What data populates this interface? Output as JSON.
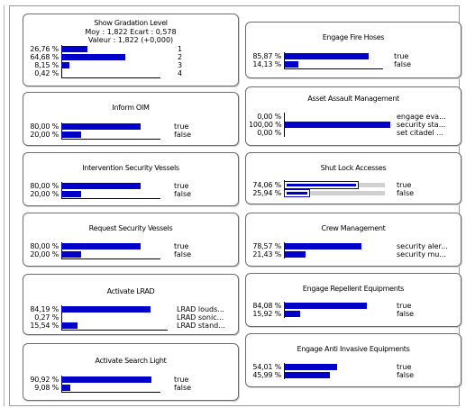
{
  "nodes": [
    {
      "title": "Show Gradation Level",
      "stats_line1": "Moy : 1,822  Ecart : 0,578",
      "stats_line2": "Valeur : 1,822 (+0,000)",
      "rows": [
        {
          "pct": "26,76 %",
          "value": 26.76,
          "state": "1"
        },
        {
          "pct": "64,68 %",
          "value": 64.68,
          "state": "2"
        },
        {
          "pct": "8,15 %",
          "value": 8.15,
          "state": "3"
        },
        {
          "pct": "0,42 %",
          "value": 0.42,
          "state": "4"
        }
      ]
    },
    {
      "title": "Engage Fire Hoses",
      "rows": [
        {
          "pct": "85,87 %",
          "value": 85.87,
          "state": "true"
        },
        {
          "pct": "14,13 %",
          "value": 14.13,
          "state": "false"
        }
      ]
    },
    {
      "title": "Inform OIM",
      "rows": [
        {
          "pct": "80,00 %",
          "value": 80.0,
          "state": "true"
        },
        {
          "pct": "20,00 %",
          "value": 20.0,
          "state": "false"
        }
      ]
    },
    {
      "title": "Asset Assault Management",
      "rows": [
        {
          "pct": "0,00 %",
          "value": 0.0,
          "state": "engage eva..."
        },
        {
          "pct": "100,00 %",
          "value": 100.0,
          "state": "security sta..."
        },
        {
          "pct": "0,00 %",
          "value": 0.0,
          "state": "set citadel ..."
        }
      ]
    },
    {
      "title": "Intervention Security Vessels",
      "rows": [
        {
          "pct": "80,00 %",
          "value": 80.0,
          "state": "true"
        },
        {
          "pct": "20,00 %",
          "value": 20.0,
          "state": "false"
        }
      ]
    },
    {
      "title": "Shut Lock Accesses",
      "rows": [
        {
          "pct": "74,06 %",
          "value": 74.06,
          "state": "true"
        },
        {
          "pct": "25,94 %",
          "value": 25.94,
          "state": "false"
        }
      ]
    },
    {
      "title": "Request Security Vessels",
      "rows": [
        {
          "pct": "80,00 %",
          "value": 80.0,
          "state": "true"
        },
        {
          "pct": "20,00 %",
          "value": 20.0,
          "state": "false"
        }
      ]
    },
    {
      "title": "Crew Management",
      "rows": [
        {
          "pct": "78,57 %",
          "value": 78.57,
          "state": "security aler..."
        },
        {
          "pct": "21,43 %",
          "value": 21.43,
          "state": "security mu..."
        }
      ]
    },
    {
      "title": "Activate LRAD",
      "rows": [
        {
          "pct": "84,19 %",
          "value": 84.19,
          "state": "LRAD louds..."
        },
        {
          "pct": "0,27 %",
          "value": 0.27,
          "state": "LRAD sonic..."
        },
        {
          "pct": "15,54 %",
          "value": 15.54,
          "state": "LRAD stand..."
        }
      ]
    },
    {
      "title": "Engage Repellent Equipments",
      "rows": [
        {
          "pct": "84,08 %",
          "value": 84.08,
          "state": "true"
        },
        {
          "pct": "15,92 %",
          "value": 15.92,
          "state": "false"
        }
      ]
    },
    {
      "title": "Engage Anti Invasive Equipments",
      "rows": [
        {
          "pct": "54,01 %",
          "value": 54.01,
          "state": "true"
        },
        {
          "pct": "45,99 %",
          "value": 45.99,
          "state": "false"
        }
      ]
    },
    {
      "title": "Activate Search Light",
      "rows": [
        {
          "pct": "90,92 %",
          "value": 90.92,
          "state": "true"
        },
        {
          "pct": "9,08 %",
          "value": 9.08,
          "state": "false"
        }
      ]
    }
  ],
  "colors": {
    "bar": "#0000c8",
    "border": "#6d6d6d",
    "highlight_track": "#d0d0d0"
  }
}
